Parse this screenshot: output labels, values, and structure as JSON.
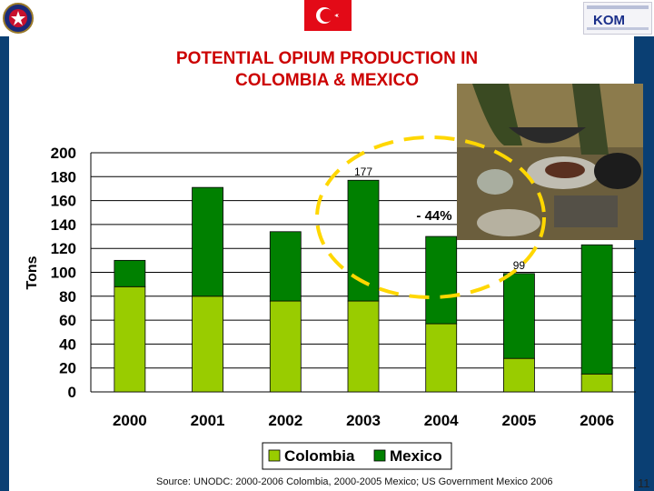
{
  "slide": {
    "title_line1": "POTENTIAL OPIUM PRODUCTION IN",
    "title_line2": "COLOMBIA & MEXICO",
    "source": "Source: UNODC: 2000-2006 Colombia, 2000-2005 Mexico; US Government Mexico 2006",
    "page_number": "11",
    "background_color": "#0a3f73",
    "title_color": "#cc0000",
    "flag_color": "#e30a17",
    "icons": [
      "police-emblem-icon",
      "turkish-flag-icon",
      "kom-logo-icon",
      "opium-processing-photo"
    ],
    "logo_text": "KOM"
  },
  "chart_data": {
    "type": "bar",
    "stacked": true,
    "categories": [
      "2000",
      "2001",
      "2002",
      "2003",
      "2004",
      "2005",
      "2006"
    ],
    "series": [
      {
        "name": "Colombia",
        "color": "#99cc00",
        "values": [
          88,
          80,
          76,
          76,
          57,
          28,
          15
        ]
      },
      {
        "name": "Mexico",
        "color": "#008000",
        "values": [
          22,
          91,
          58,
          101,
          73,
          71,
          108
        ]
      }
    ],
    "ylabel": "Tons",
    "ylim": [
      0,
      200
    ],
    "yticks": [
      0,
      20,
      40,
      60,
      80,
      100,
      120,
      140,
      160,
      180,
      200
    ],
    "grid": true,
    "legend": "bottom",
    "data_labels": [
      {
        "category": "2003",
        "text": "177"
      },
      {
        "category": "2005",
        "text": "99"
      }
    ],
    "annotation": "- 44%"
  }
}
